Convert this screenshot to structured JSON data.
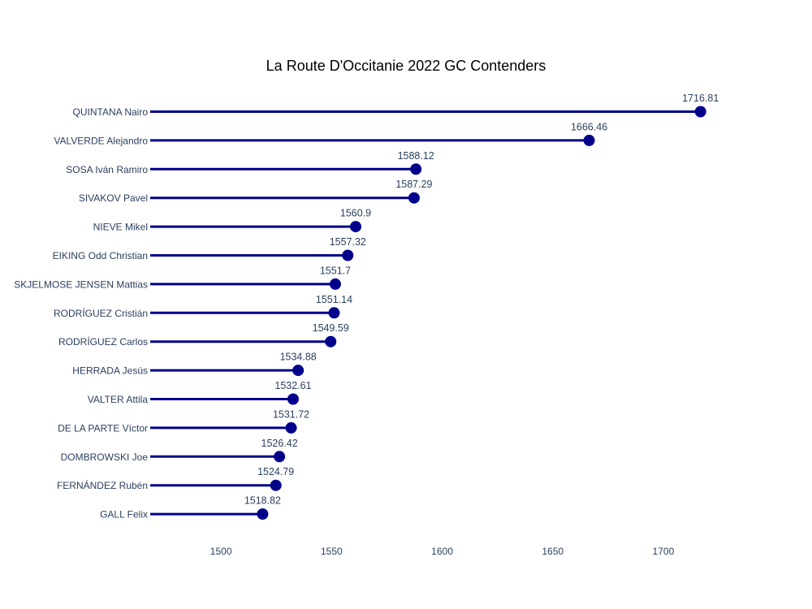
{
  "chart_data": {
    "type": "lollipop",
    "title": "La Route D'Occitanie 2022 GC Contenders",
    "xlabel": "",
    "ylabel": "",
    "color": "#00008b",
    "xlim": [
      1468,
      1725
    ],
    "x_ticks": [
      1500,
      1550,
      1600,
      1650,
      1700
    ],
    "grid": false,
    "legend": "none",
    "categories": [
      "QUINTANA Nairo",
      "VALVERDE Alejandro",
      "SOSA Iván Ramiro",
      "SIVAKOV Pavel",
      "NIEVE Mikel",
      "EIKING Odd Christian",
      "SKJELMOSE JENSEN Mattias",
      "RODRÍGUEZ Cristián",
      "RODRÍGUEZ Carlos",
      "HERRADA Jesús",
      "VALTER Attila",
      "DE LA PARTE Víctor",
      "DOMBROWSKI Joe",
      "FERNÁNDEZ Rubén",
      "GALL Felix"
    ],
    "values": [
      1716.81,
      1666.46,
      1588.12,
      1587.29,
      1560.9,
      1557.32,
      1551.7,
      1551.14,
      1549.59,
      1534.88,
      1532.61,
      1531.72,
      1526.42,
      1524.79,
      1518.82
    ],
    "value_labels": [
      "1716.81",
      "1666.46",
      "1588.12",
      "1587.29",
      "1560.9",
      "1557.32",
      "1551.7",
      "1551.14",
      "1549.59",
      "1534.88",
      "1532.61",
      "1531.72",
      "1526.42",
      "1524.79",
      "1518.82"
    ]
  }
}
